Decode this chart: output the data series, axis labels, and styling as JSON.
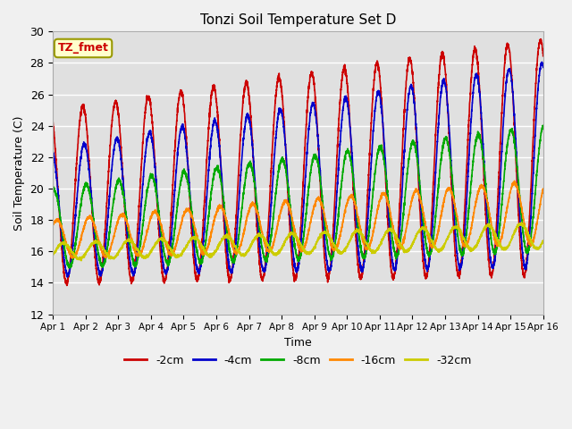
{
  "title": "Tonzi Soil Temperature Set D",
  "xlabel": "Time",
  "ylabel": "Soil Temperature (C)",
  "ylim": [
    12,
    30
  ],
  "xlim": [
    0,
    15
  ],
  "xtick_labels": [
    "Apr 1",
    "Apr 2",
    "Apr 3",
    "Apr 4",
    "Apr 5",
    "Apr 6",
    "Apr 7",
    "Apr 8",
    "Apr 9",
    "Apr 10",
    "Apr 11",
    "Apr 12",
    "Apr 13",
    "Apr 14",
    "Apr 15",
    "Apr 16"
  ],
  "series": {
    "-2cm": {
      "color": "#cc0000",
      "lw": 1.2
    },
    "-4cm": {
      "color": "#0000cc",
      "lw": 1.2
    },
    "-8cm": {
      "color": "#00aa00",
      "lw": 1.2
    },
    "-16cm": {
      "color": "#ff8800",
      "lw": 1.2
    },
    "-32cm": {
      "color": "#cccc00",
      "lw": 1.2
    }
  },
  "annotation_text": "TZ_fmet",
  "annotation_fgcolor": "#cc0000",
  "annotation_bgcolor": "#ffffcc",
  "annotation_edgecolor": "#999900",
  "fig_facecolor": "#e8e8e8",
  "ax_facecolor": "#e0e0e0",
  "days": 15
}
